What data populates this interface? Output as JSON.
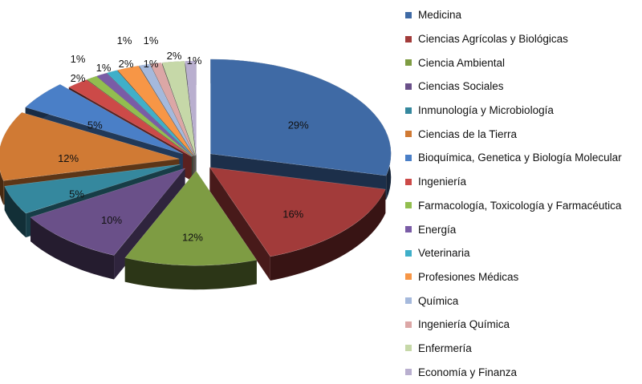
{
  "chart_data": {
    "type": "pie",
    "style": "3d-exploded",
    "title": "",
    "legend_position": "right",
    "categories": [
      "Medicina",
      "Ciencias Agrícolas y Biológicas",
      "Ciencia Ambiental",
      "Ciencias Sociales",
      "Inmunología y Microbiología",
      "Ciencias de la Tierra",
      "Bioquímica, Genetica y Biología Molecular",
      "Ingeniería",
      "Farmacología, Toxicología y Farmacéutica",
      "Energía",
      "Veterinaria",
      "Profesiones Médicas",
      "Química",
      "Ingeniería Química",
      "Enfermería",
      "Economía y Finanza"
    ],
    "values": [
      29,
      16,
      12,
      10,
      5,
      12,
      5,
      2,
      1,
      1,
      1,
      2,
      1,
      1,
      2,
      1
    ],
    "labels": [
      "29%",
      "16%",
      "12%",
      "10%",
      "5%",
      "12%",
      "5%",
      "2%",
      "1%",
      "1%",
      "1%",
      "2%",
      "1%",
      "1%",
      "2%",
      "1%"
    ],
    "colors": [
      "#3F6AA5",
      "#A23B3A",
      "#7E9C43",
      "#6A5089",
      "#35889E",
      "#D07A34",
      "#4A7FC7",
      "#CC4A48",
      "#92BE4F",
      "#7A5CA6",
      "#3FAFC9",
      "#F79646",
      "#A5B9DC",
      "#DCA7A6",
      "#C6D8A8",
      "#B9AFCF"
    ]
  }
}
